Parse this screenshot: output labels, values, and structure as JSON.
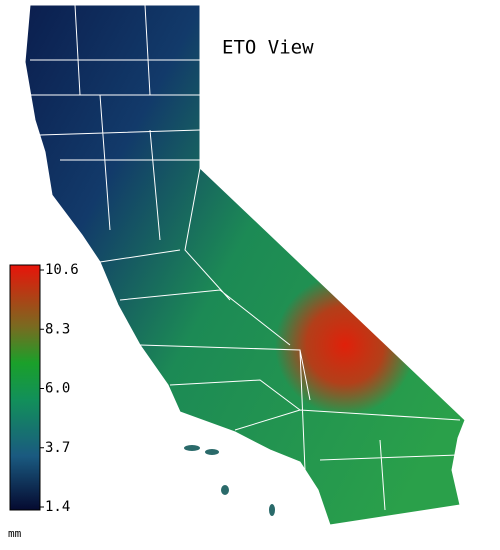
{
  "title": "ETO View",
  "legend": {
    "ticks": [
      10.6,
      8.3,
      {
        "value": 6,
        "label": "6.0"
      },
      3.7,
      1.4
    ],
    "unit": "mm"
  }
}
